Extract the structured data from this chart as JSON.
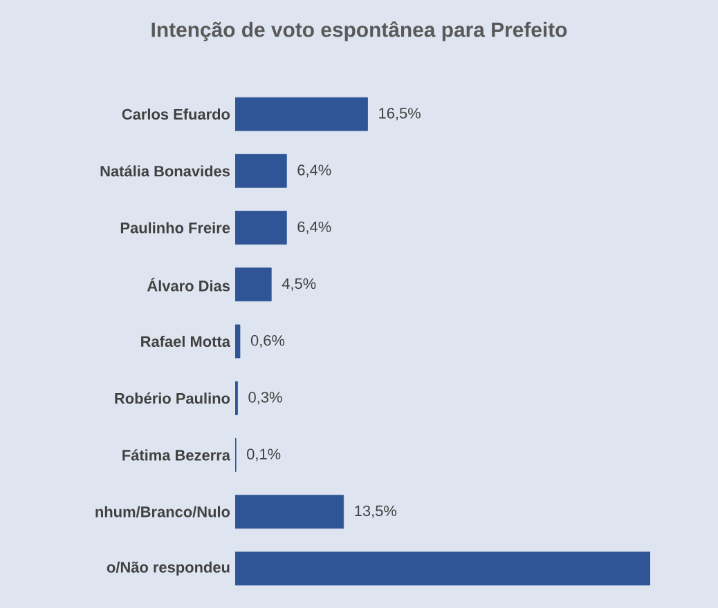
{
  "chart_data": {
    "type": "bar",
    "orientation": "horizontal",
    "title": "Intenção de voto espontânea para Prefeito",
    "categories": [
      "Carlos Efuardo",
      "Natália Bonavides",
      "Paulinho Freire",
      "Álvaro Dias",
      "Rafael Motta",
      "Robério Paulino",
      "Fátima Bezerra",
      "nhum/Branco/Nulo",
      "o/Não respondeu"
    ],
    "values": [
      16.5,
      6.4,
      6.4,
      4.5,
      0.6,
      0.3,
      0.1,
      13.5,
      51.7
    ],
    "value_labels": [
      "16,5%",
      "6,4%",
      "6,4%",
      "4,5%",
      "0,6%",
      "0,3%",
      "0,1%",
      "13,5%",
      null
    ],
    "color": "#2f5597"
  }
}
